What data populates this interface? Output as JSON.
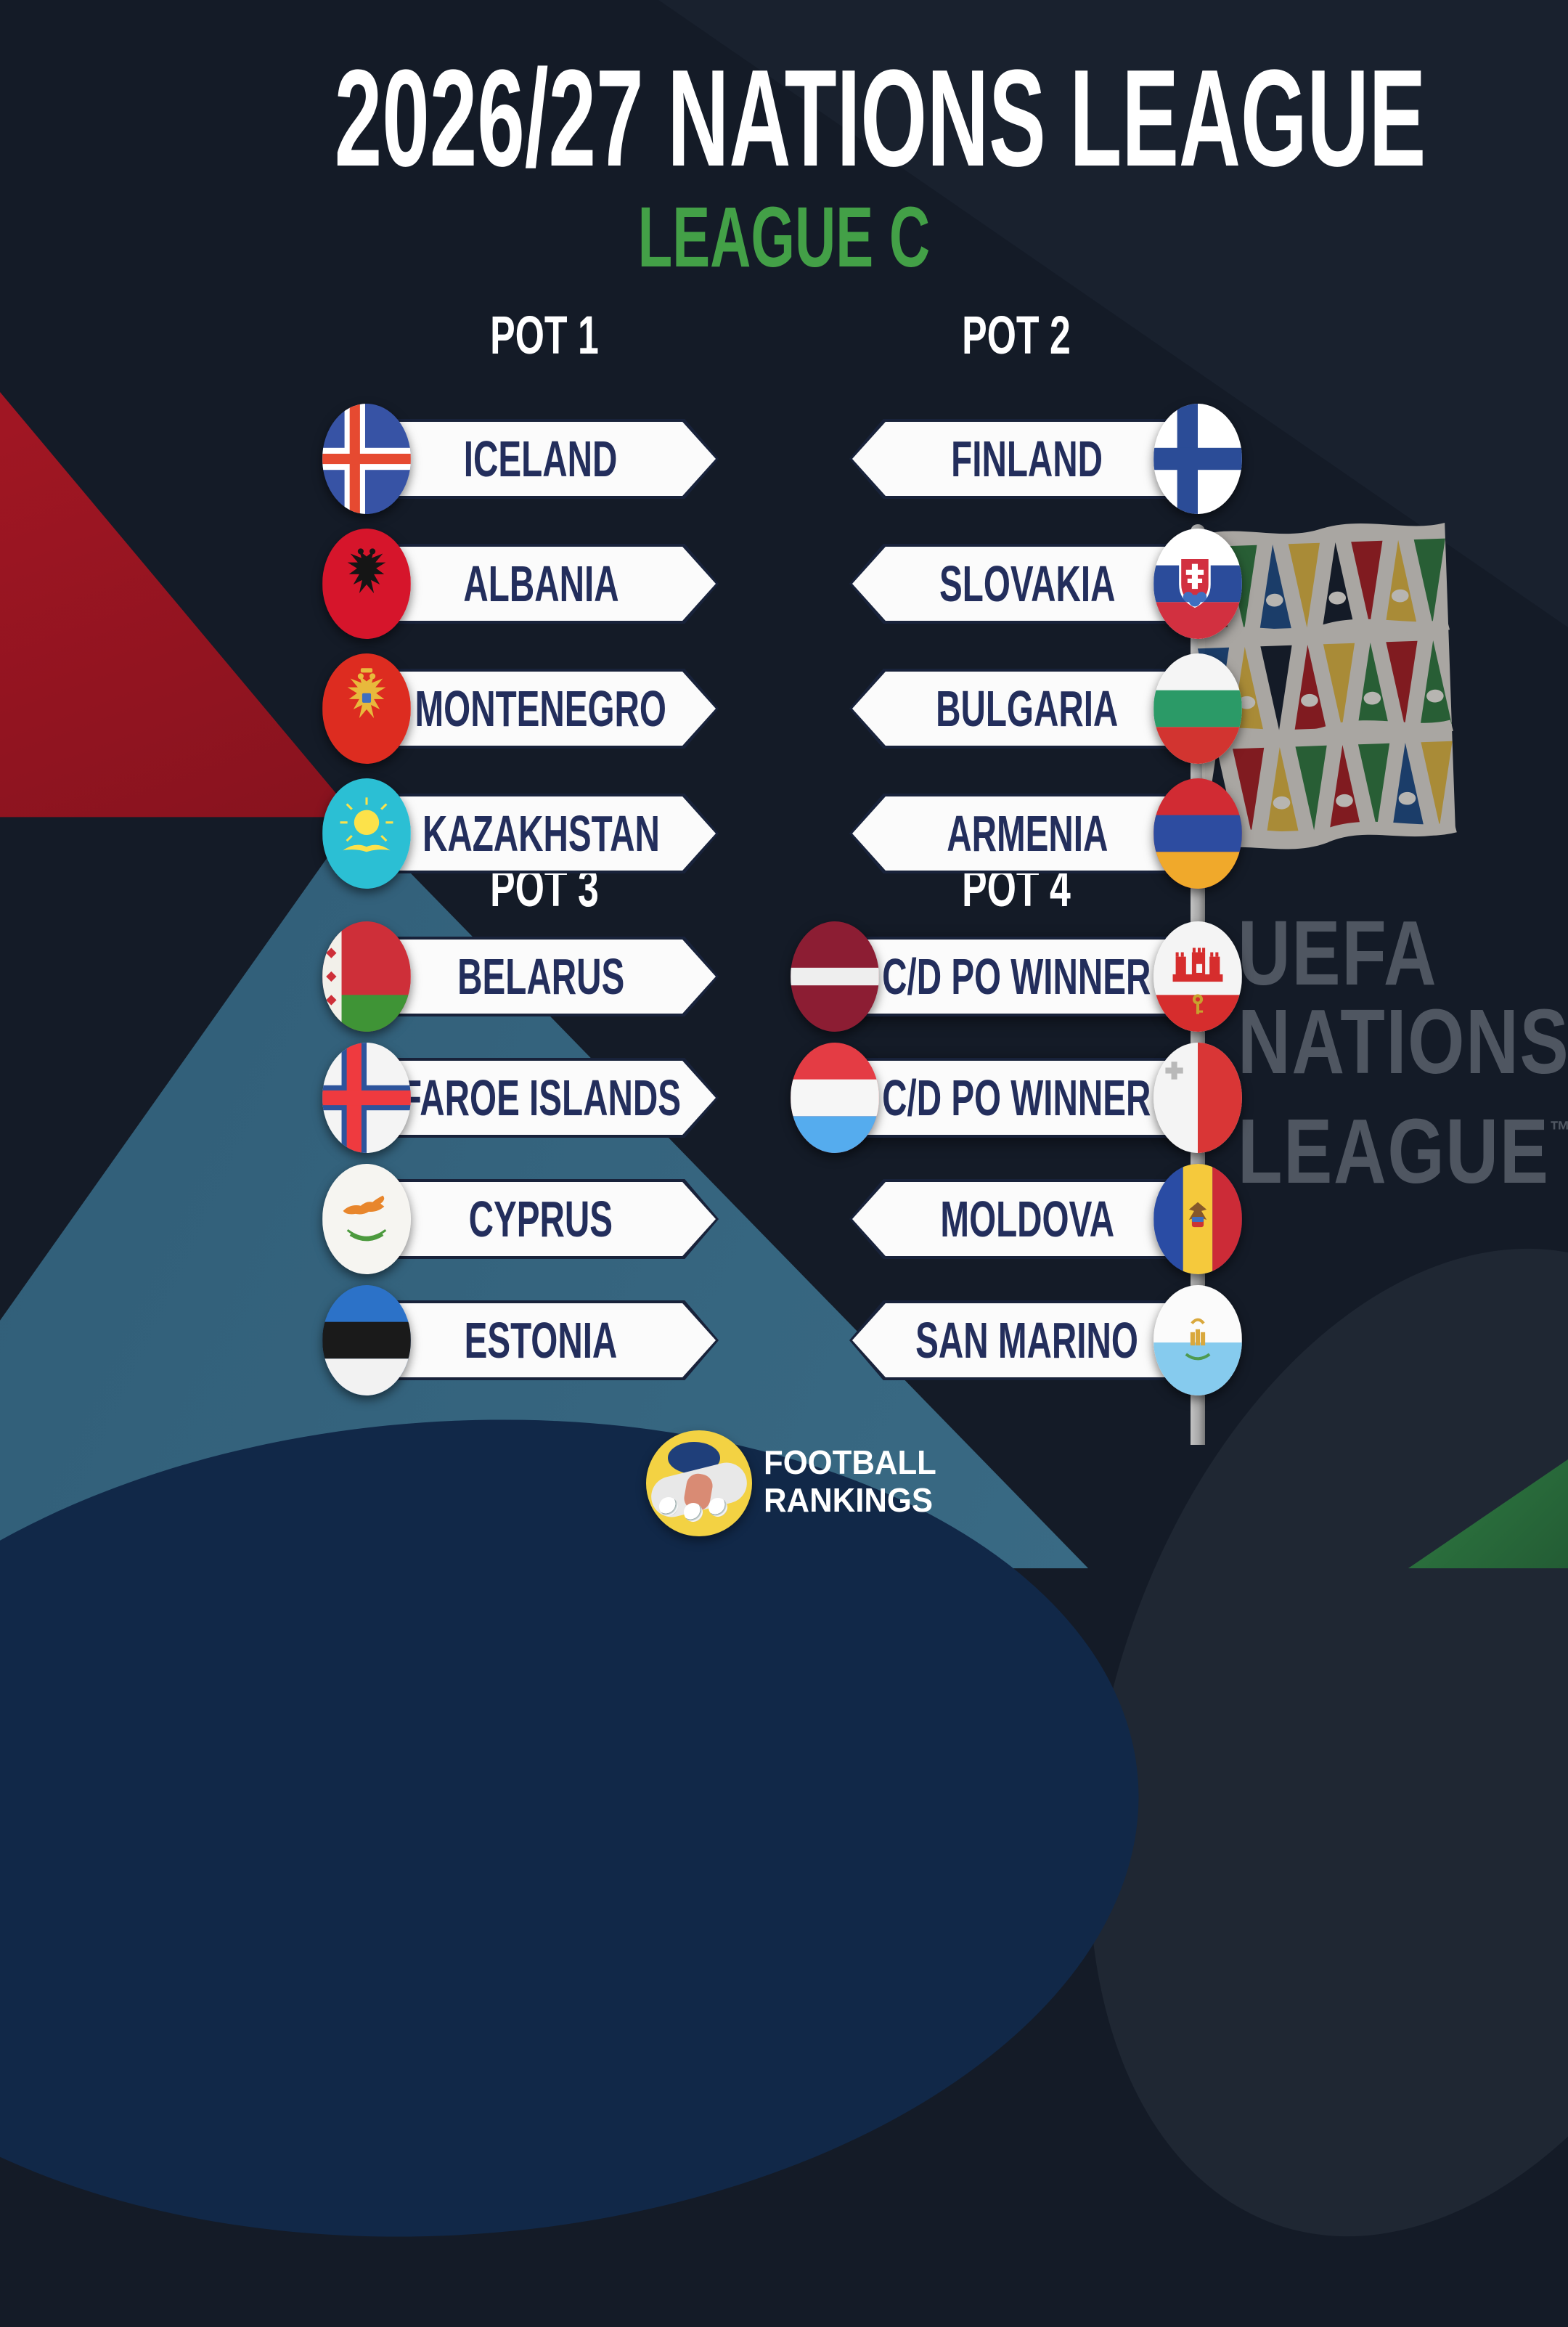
{
  "title": "2026/27 NATIONS LEAGUE",
  "subtitle": "LEAGUE C",
  "pots": [
    {
      "label": "POT 1",
      "teams": [
        {
          "name": "ICELAND",
          "flag": "iceland"
        },
        {
          "name": "ALBANIA",
          "flag": "albania"
        },
        {
          "name": "MONTENEGRO",
          "flag": "montenegro"
        },
        {
          "name": "KAZAKHSTAN",
          "flag": "kazakhstan"
        }
      ]
    },
    {
      "label": "POT 2",
      "teams": [
        {
          "name": "FINLAND",
          "flag": "finland"
        },
        {
          "name": "SLOVAKIA",
          "flag": "slovakia"
        },
        {
          "name": "BULGARIA",
          "flag": "bulgaria"
        },
        {
          "name": "ARMENIA",
          "flag": "armenia"
        }
      ]
    },
    {
      "label": "POT 3",
      "teams": [
        {
          "name": "BELARUS",
          "flag": "belarus"
        },
        {
          "name": "FAROE ISLANDS",
          "flag": "faroe-islands"
        },
        {
          "name": "CYPRUS",
          "flag": "cyprus"
        },
        {
          "name": "ESTONIA",
          "flag": "estonia"
        }
      ]
    },
    {
      "label": "POT 4",
      "teams": [
        {
          "name": "C/D PO WINNER",
          "flag_left": "latvia",
          "flag": "gibraltar"
        },
        {
          "name": "C/D PO WINNER",
          "flag_left": "luxembourg",
          "flag": "malta"
        },
        {
          "name": "MOLDOVA",
          "flag": "moldova"
        },
        {
          "name": "SAN MARINO",
          "flag": "san-marino"
        }
      ]
    }
  ],
  "watermark": {
    "line1": "UEFA",
    "line2": "NATIONS",
    "line3": "LEAGUE",
    "tm": "™"
  },
  "footer": {
    "line1": "FOOTBALL",
    "line2": "RANKINGS"
  },
  "colors": {
    "background": "#141b27",
    "accent_green": "#43a047",
    "banner_text": "#232e5c",
    "red_shape": "#8c1520",
    "teal_shape": "#3a6b85",
    "bottom_navy": "#112848",
    "green_corner": "#2f7b42",
    "pole_grey": "#a9a9a9",
    "footer_circle": "#f3d243"
  }
}
